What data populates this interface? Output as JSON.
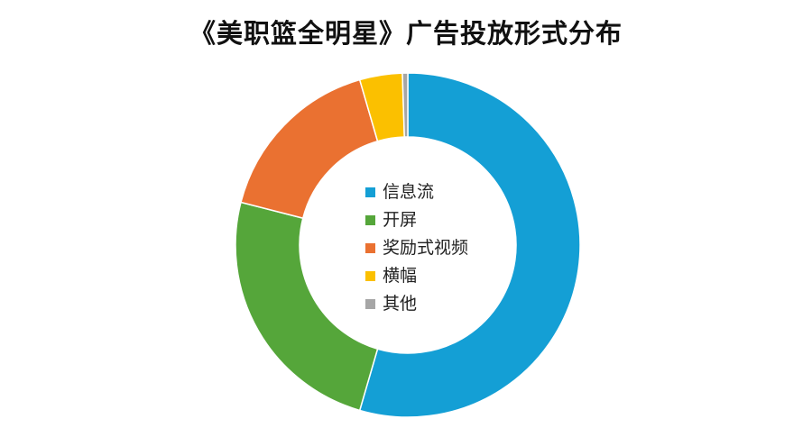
{
  "chart_data": {
    "type": "pie",
    "variant": "donut",
    "title": "《美职篮全明星》广告投放形式分布",
    "categories": [
      "信息流",
      "开屏",
      "奖励式视频",
      "横幅",
      "其他"
    ],
    "values": [
      54.5,
      24.5,
      16.5,
      4.0,
      0.5
    ],
    "unit": "%",
    "colors": [
      "#149fd5",
      "#55a63a",
      "#ea7131",
      "#fbc000",
      "#a6a6a6"
    ],
    "legend_placement": "center"
  }
}
